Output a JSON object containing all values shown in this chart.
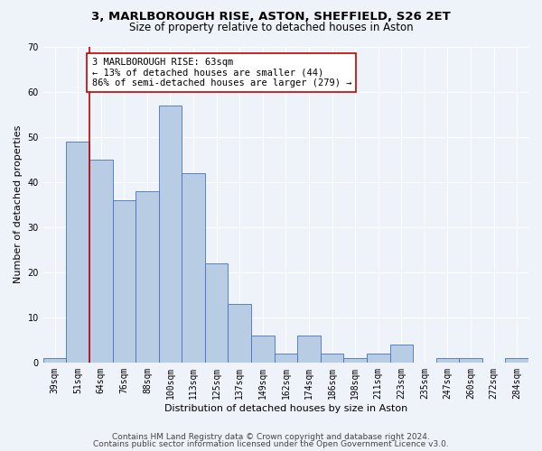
{
  "title1": "3, MARLBOROUGH RISE, ASTON, SHEFFIELD, S26 2ET",
  "title2": "Size of property relative to detached houses in Aston",
  "xlabel": "Distribution of detached houses by size in Aston",
  "ylabel": "Number of detached properties",
  "categories": [
    "39sqm",
    "51sqm",
    "64sqm",
    "76sqm",
    "88sqm",
    "100sqm",
    "113sqm",
    "125sqm",
    "137sqm",
    "149sqm",
    "162sqm",
    "174sqm",
    "186sqm",
    "198sqm",
    "211sqm",
    "223sqm",
    "235sqm",
    "247sqm",
    "260sqm",
    "272sqm",
    "284sqm"
  ],
  "values": [
    1,
    49,
    45,
    36,
    38,
    57,
    42,
    22,
    13,
    6,
    2,
    6,
    2,
    1,
    2,
    4,
    0,
    1,
    1,
    0,
    1
  ],
  "bar_color": "#b8cce4",
  "bar_edge_color": "#4472c4",
  "vline_x_index": 1.5,
  "vline_color": "#c00000",
  "annotation_text": "3 MARLBOROUGH RISE: 63sqm\n← 13% of detached houses are smaller (44)\n86% of semi-detached houses are larger (279) →",
  "annotation_box_color": "#ffffff",
  "annotation_box_edge_color": "#c00000",
  "ylim": [
    0,
    70
  ],
  "yticks": [
    0,
    10,
    20,
    30,
    40,
    50,
    60,
    70
  ],
  "footer1": "Contains HM Land Registry data © Crown copyright and database right 2024.",
  "footer2": "Contains public sector information licensed under the Open Government Licence v3.0.",
  "bg_color": "#eef2f9",
  "grid_color": "#ffffff",
  "title1_fontsize": 9.5,
  "title2_fontsize": 8.5,
  "xlabel_fontsize": 8,
  "ylabel_fontsize": 8,
  "tick_fontsize": 7,
  "footer_fontsize": 6.5,
  "annotation_fontsize": 7.5
}
